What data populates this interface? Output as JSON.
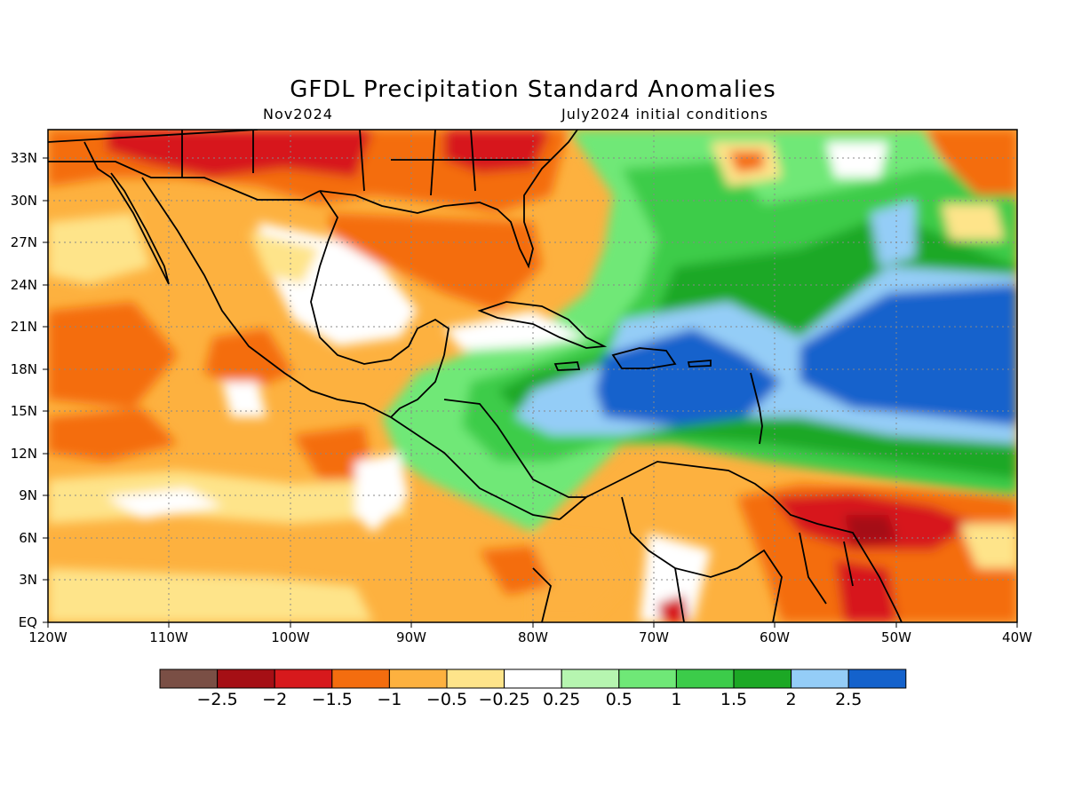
{
  "title": "GFDL Precipitation Standard Anomalies",
  "subtitle_left": "Nov2024",
  "subtitle_right": "July2024 initial conditions",
  "lat_labels": [
    "33N",
    "30N",
    "27N",
    "24N",
    "21N",
    "18N",
    "15N",
    "12N",
    "9N",
    "6N",
    "3N",
    "EQ"
  ],
  "lon_labels": [
    "120W",
    "110W",
    "100W",
    "90W",
    "80W",
    "70W",
    "60W",
    "50W",
    "40W"
  ],
  "colorbar": {
    "colors": [
      "#7a4f45",
      "#a50f15",
      "#d7191c",
      "#f46d0f",
      "#fdb13f",
      "#fee48a",
      "#ffffff",
      "#b6f5b0",
      "#6fe877",
      "#3ccc4a",
      "#1ca825",
      "#94cdf7",
      "#1462cc"
    ],
    "labels": [
      "−2.5",
      "−2",
      "−1.5",
      "−1",
      "−0.5",
      "−0.25",
      "0.25",
      "0.5",
      "1",
      "1.5",
      "2",
      "2.5"
    ]
  },
  "map": {
    "lon_range": [
      -120,
      -40
    ],
    "lat_range": [
      0,
      35
    ],
    "grid": true
  }
}
